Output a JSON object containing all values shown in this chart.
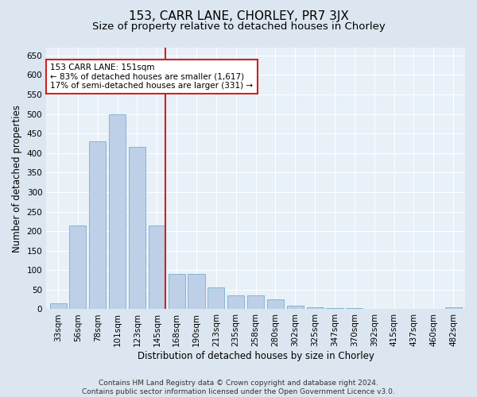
{
  "title1": "153, CARR LANE, CHORLEY, PR7 3JX",
  "title2": "Size of property relative to detached houses in Chorley",
  "xlabel": "Distribution of detached houses by size in Chorley",
  "ylabel": "Number of detached properties",
  "footnote": "Contains HM Land Registry data © Crown copyright and database right 2024.\nContains public sector information licensed under the Open Government Licence v3.0.",
  "categories": [
    "33sqm",
    "56sqm",
    "78sqm",
    "101sqm",
    "123sqm",
    "145sqm",
    "168sqm",
    "190sqm",
    "213sqm",
    "235sqm",
    "258sqm",
    "280sqm",
    "302sqm",
    "325sqm",
    "347sqm",
    "370sqm",
    "392sqm",
    "415sqm",
    "437sqm",
    "460sqm",
    "482sqm"
  ],
  "values": [
    15,
    215,
    430,
    500,
    415,
    215,
    90,
    90,
    55,
    35,
    35,
    25,
    10,
    5,
    3,
    3,
    1,
    1,
    1,
    1,
    5
  ],
  "highlight_index": 5,
  "bar_color": "#bdd0e8",
  "bar_edge_color": "#7aafcc",
  "vline_color": "#cc2222",
  "annotation_text": "153 CARR LANE: 151sqm\n← 83% of detached houses are smaller (1,617)\n17% of semi-detached houses are larger (331) →",
  "annotation_box_color": "#ffffff",
  "annotation_box_edge": "#cc2222",
  "ylim": [
    0,
    670
  ],
  "yticks": [
    0,
    50,
    100,
    150,
    200,
    250,
    300,
    350,
    400,
    450,
    500,
    550,
    600,
    650
  ],
  "bg_color": "#dce6f0",
  "plot_bg_color": "#e8f0f8",
  "grid_color": "#ffffff",
  "title1_fontsize": 11,
  "title2_fontsize": 9.5,
  "axis_label_fontsize": 8.5,
  "tick_fontsize": 7.5,
  "footnote_fontsize": 6.5
}
